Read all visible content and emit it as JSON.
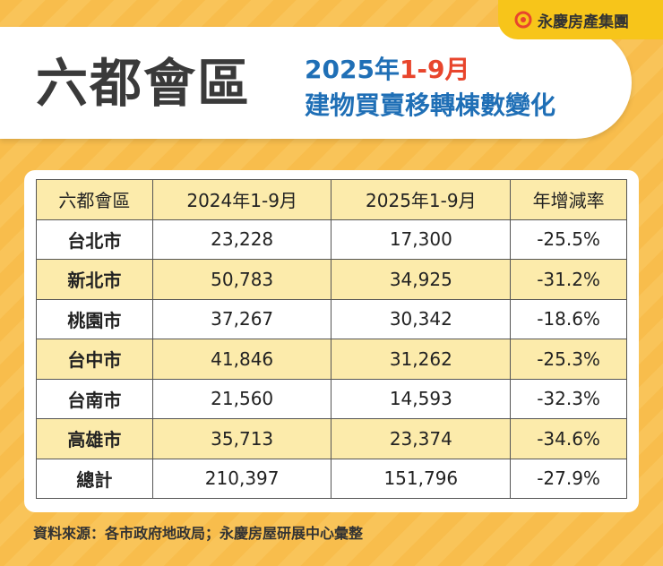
{
  "logo": "永慶房產集團",
  "header": {
    "title": "六都會區",
    "date_year": "2025年",
    "date_range": "1-9月",
    "subtitle": "建物買賣移轉棟數變化"
  },
  "table": {
    "columns": [
      "六都會區",
      "2024年1-9月",
      "2025年1-9月",
      "年增減率"
    ],
    "rows": [
      [
        "台北市",
        "23,228",
        "17,300",
        "-25.5%"
      ],
      [
        "新北市",
        "50,783",
        "34,925",
        "-31.2%"
      ],
      [
        "桃園市",
        "37,267",
        "30,342",
        "-18.6%"
      ],
      [
        "台中市",
        "41,846",
        "31,262",
        "-25.3%"
      ],
      [
        "台南市",
        "21,560",
        "14,593",
        "-32.3%"
      ],
      [
        "高雄市",
        "35,713",
        "23,374",
        "-34.6%"
      ],
      [
        "總計",
        "210,397",
        "151,796",
        "-27.9%"
      ]
    ]
  },
  "source": "資料來源：各市政府地政局；永慶房屋研展中心彙整"
}
